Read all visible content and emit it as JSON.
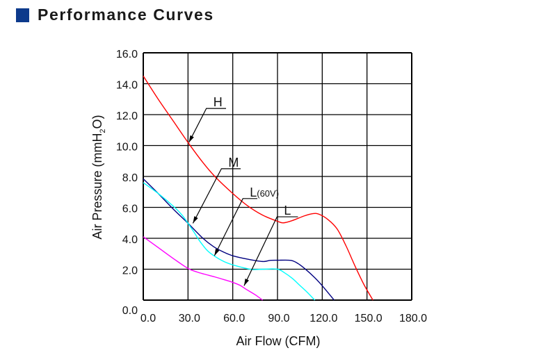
{
  "header": {
    "title": "Performance Curves",
    "accent_color": "#0d3a8c"
  },
  "chart_data": {
    "type": "line",
    "title": "Performance Curves",
    "xlabel": "Air Flow (CFM)",
    "ylabel": "Air Pressure (mmH2O)",
    "ylabel_parts": {
      "main": "Air Pressure (mmH",
      "sub": "2",
      "end": "O)"
    },
    "xlim": [
      0,
      180
    ],
    "ylim": [
      0,
      16
    ],
    "grid": true,
    "x_ticks": [
      "0.0",
      "30.0",
      "60.0",
      "90.0",
      "120.0",
      "150.0",
      "180.0"
    ],
    "x_tick_values": [
      0,
      30,
      60,
      90,
      120,
      150,
      180
    ],
    "y_ticks": [
      "0.0",
      "2.0",
      "4.0",
      "6.0",
      "8.0",
      "10.0",
      "12.0",
      "14.0",
      "16.0"
    ],
    "y_tick_values": [
      0,
      2,
      4,
      6,
      8,
      10,
      12,
      14,
      16
    ],
    "series": [
      {
        "name": "H",
        "color": "#ff0000",
        "points": [
          [
            0,
            14.5
          ],
          [
            10,
            13.0
          ],
          [
            20,
            11.6
          ],
          [
            30,
            10.2
          ],
          [
            40,
            8.9
          ],
          [
            48,
            8.0
          ],
          [
            60,
            6.9
          ],
          [
            70,
            6.1
          ],
          [
            80,
            5.5
          ],
          [
            90,
            5.1
          ],
          [
            94,
            5.0
          ],
          [
            100,
            5.15
          ],
          [
            108,
            5.45
          ],
          [
            114,
            5.6
          ],
          [
            118,
            5.55
          ],
          [
            124,
            5.2
          ],
          [
            130,
            4.6
          ],
          [
            136,
            3.5
          ],
          [
            142,
            2.2
          ],
          [
            148,
            1.0
          ],
          [
            154,
            0
          ]
        ]
      },
      {
        "name": "M",
        "color": "#000080",
        "points": [
          [
            0,
            7.85
          ],
          [
            10,
            6.9
          ],
          [
            20,
            5.9
          ],
          [
            30,
            4.97
          ],
          [
            40,
            4.0
          ],
          [
            47,
            3.47
          ],
          [
            54,
            3.1
          ],
          [
            60,
            2.87
          ],
          [
            70,
            2.65
          ],
          [
            80,
            2.5
          ],
          [
            85,
            2.57
          ],
          [
            90,
            2.58
          ],
          [
            99,
            2.57
          ],
          [
            104,
            2.35
          ],
          [
            109,
            1.98
          ],
          [
            115,
            1.45
          ],
          [
            120,
            0.93
          ],
          [
            128,
            0
          ]
        ]
      },
      {
        "name": "L(60V)",
        "color": "#00ffff",
        "points": [
          [
            0,
            7.6
          ],
          [
            10,
            6.9
          ],
          [
            21,
            6.0
          ],
          [
            26,
            5.5
          ],
          [
            30,
            4.97
          ],
          [
            34,
            4.4
          ],
          [
            38,
            3.8
          ],
          [
            43,
            3.2
          ],
          [
            48,
            2.83
          ],
          [
            54,
            2.5
          ],
          [
            60,
            2.28
          ],
          [
            67,
            2.1
          ],
          [
            73,
            1.98
          ],
          [
            80,
            2.0
          ],
          [
            90,
            2.0
          ],
          [
            95,
            1.75
          ],
          [
            100,
            1.4
          ],
          [
            105,
            0.95
          ],
          [
            110,
            0.5
          ],
          [
            115,
            0
          ]
        ]
      },
      {
        "name": "L",
        "color": "#ff00ff",
        "points": [
          [
            0,
            4.1
          ],
          [
            10,
            3.4
          ],
          [
            20,
            2.7
          ],
          [
            30,
            2.05
          ],
          [
            36,
            1.82
          ],
          [
            41,
            1.68
          ],
          [
            48,
            1.5
          ],
          [
            55,
            1.3
          ],
          [
            60,
            1.15
          ],
          [
            65,
            0.95
          ],
          [
            69,
            0.7
          ],
          [
            75,
            0.35
          ],
          [
            80,
            0
          ]
        ]
      }
    ],
    "annotations": [
      {
        "label": "H",
        "tip": [
          30.6,
          10.2
        ],
        "elbow": [
          42.3,
          12.4
        ],
        "end": [
          55.5,
          12.4
        ]
      },
      {
        "label": "M",
        "tip": [
          33.3,
          4.97
        ],
        "elbow": [
          52.4,
          8.5
        ],
        "end": [
          65.3,
          8.5
        ]
      },
      {
        "label": "L",
        "label_suffix": "(60V)",
        "tip": [
          47.7,
          2.87
        ],
        "elbow": [
          66.8,
          6.57
        ],
        "end": [
          76.5,
          6.57
        ]
      },
      {
        "label": "L",
        "tip": [
          67.6,
          0.93
        ],
        "elbow": [
          89.7,
          5.39
        ],
        "end": [
          103.7,
          5.39
        ]
      }
    ]
  }
}
